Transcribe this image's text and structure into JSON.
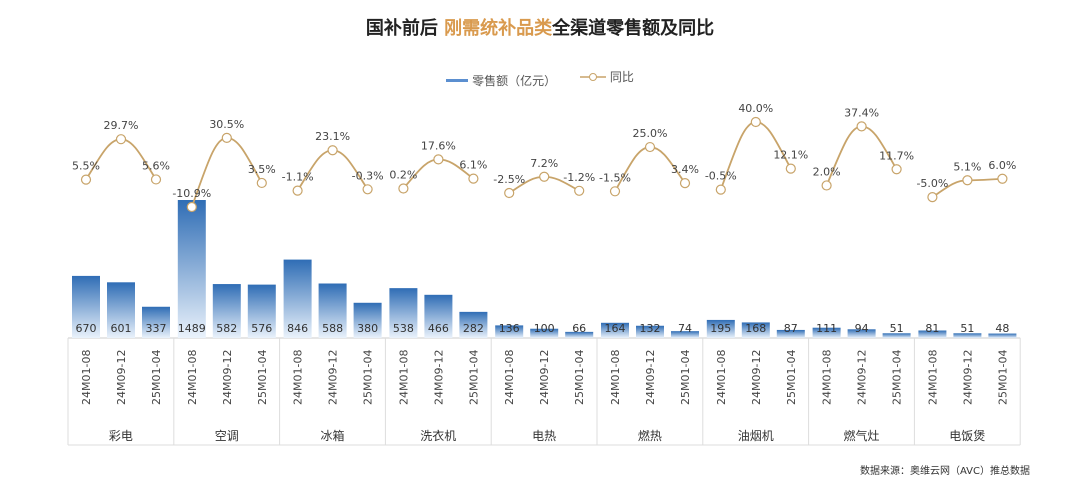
{
  "title_prefix": "国补前后 ",
  "title_highlight": "刚需统补品类",
  "title_suffix": "全渠道零售额及同比",
  "source": "数据来源：奥维云网（AVC）推总数据",
  "colors": {
    "bar_top": "#2f6db5",
    "bar_bottom": "#eaf2fb",
    "line": "#c8a46a",
    "highlight": "#d99a4e"
  },
  "chart_data": {
    "type": "bar+line",
    "legend": [
      "零售额（亿元）",
      "同比"
    ],
    "legend_position": "top",
    "grid": false,
    "groups": [
      "彩电",
      "空调",
      "冰箱",
      "洗衣机",
      "电热",
      "燃热",
      "油烟机",
      "燃气灶",
      "电饭煲"
    ],
    "periods": [
      "24M01-08",
      "24M09-12",
      "25M01-04"
    ],
    "series": [
      {
        "name": "零售额（亿元）",
        "type": "bar",
        "values": [
          [
            670,
            601,
            337
          ],
          [
            1489,
            582,
            576
          ],
          [
            846,
            588,
            380
          ],
          [
            538,
            466,
            282
          ],
          [
            136,
            100,
            66
          ],
          [
            164,
            132,
            74
          ],
          [
            195,
            168,
            87
          ],
          [
            111,
            94,
            51
          ],
          [
            81,
            51,
            48
          ]
        ]
      },
      {
        "name": "同比",
        "type": "line",
        "unit": "%",
        "values": [
          [
            5.5,
            29.7,
            5.6
          ],
          [
            -10.9,
            30.5,
            3.5
          ],
          [
            -1.1,
            23.1,
            -0.3
          ],
          [
            0.2,
            17.6,
            6.1
          ],
          [
            -2.5,
            7.2,
            -1.2
          ],
          [
            -1.5,
            25.0,
            3.4
          ],
          [
            -0.5,
            40.0,
            12.1
          ],
          [
            2.0,
            37.4,
            11.7
          ],
          [
            -5.0,
            5.1,
            6.0
          ]
        ]
      }
    ]
  }
}
